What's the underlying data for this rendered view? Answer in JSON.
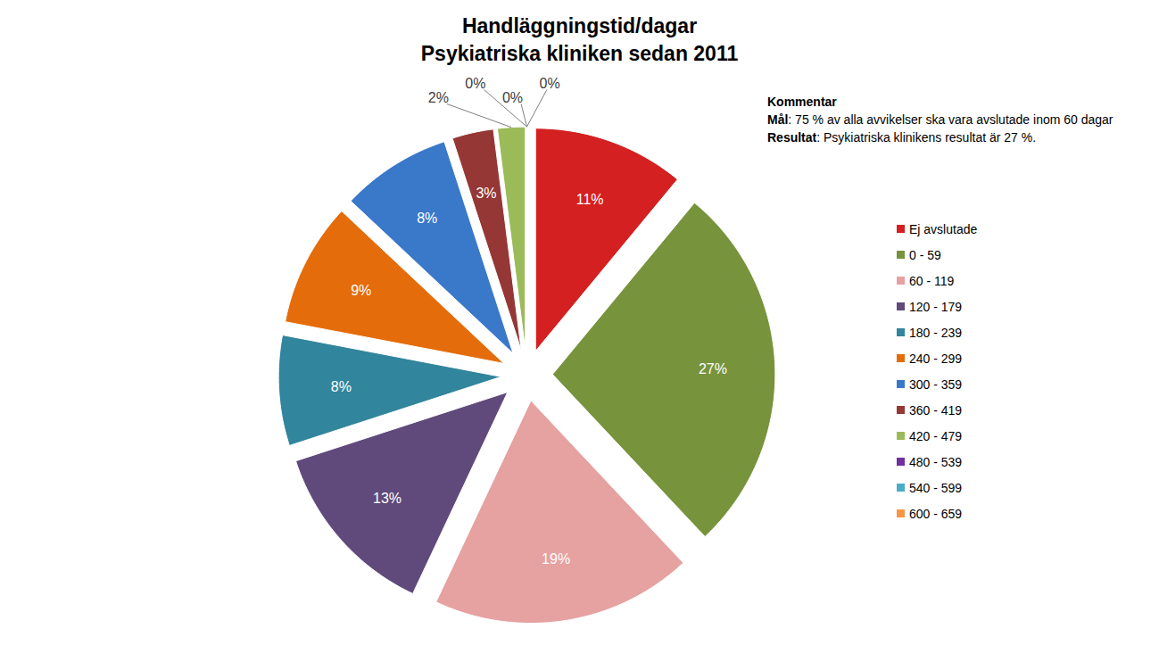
{
  "chart_data": {
    "type": "pie",
    "title": "Handläggningstid/dagar",
    "subtitle": "Psykiatriska kliniken sedan 2011",
    "categories": [
      "Ej avslutade",
      "0 - 59",
      "60 - 119",
      "120 - 179",
      "180 - 239",
      "240 - 299",
      "300 - 359",
      "360 - 419",
      "420 - 479",
      "480 - 539",
      "540 - 599",
      "600 - 659"
    ],
    "values": [
      11,
      27,
      19,
      13,
      8,
      9,
      8,
      3,
      2,
      0,
      0,
      0
    ],
    "value_labels": [
      "11%",
      "27%",
      "19%",
      "13%",
      "8%",
      "9%",
      "8%",
      "3%",
      "2%",
      "0%",
      "0%",
      "0%"
    ],
    "colors": [
      "#d42020",
      "#77933c",
      "#e6a1a1",
      "#604a7b",
      "#31859c",
      "#e46c0a",
      "#3a78c9",
      "#953735",
      "#9bbb59",
      "#7030a0",
      "#4bacc6",
      "#f79646"
    ],
    "data_labels": true,
    "legend": "right",
    "tick_labels": false,
    "annotations": [
      {
        "heading": "Kommentar"
      },
      {
        "label": "Mål",
        "text": ": 75 % av alla avvikelser ska vara avslutade inom 60 dagar"
      },
      {
        "label": "Resultat",
        "text": ": Psykiatriska klinikens resultat är 27 %."
      }
    ]
  }
}
